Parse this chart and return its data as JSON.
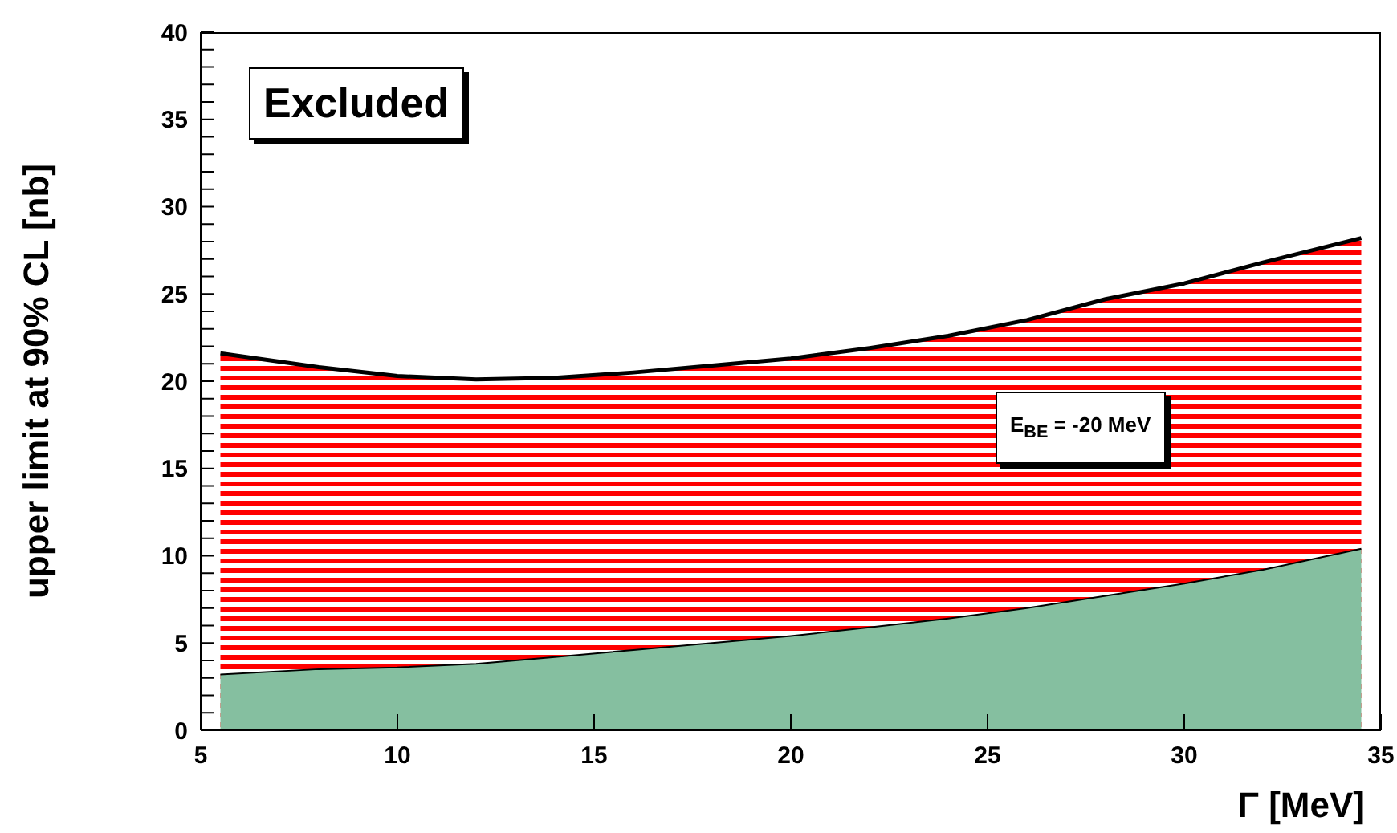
{
  "chart_data": {
    "type": "area",
    "xlabel": "Γ [MeV]",
    "ylabel": "upper limit at 90% CL [nb]",
    "x": [
      5.5,
      8,
      10,
      12,
      14,
      16,
      18,
      20,
      22,
      24,
      26,
      28,
      30,
      32,
      34.5
    ],
    "series": [
      {
        "color": "#ff0000",
        "values": [
          21.6,
          20.8,
          20.3,
          20.1,
          20.2,
          20.5,
          20.9,
          21.3,
          21.9,
          22.6,
          23.5,
          24.7,
          25.6,
          26.8,
          28.2
        ]
      },
      {
        "color": "#85bfa0",
        "values": [
          3.2,
          3.5,
          3.6,
          3.8,
          4.2,
          4.6,
          5.0,
          5.4,
          5.9,
          6.4,
          7.0,
          7.7,
          8.4,
          9.2,
          10.4
        ]
      }
    ],
    "xlim": [
      5,
      35
    ],
    "xticks": [
      5,
      10,
      15,
      20,
      25,
      30,
      35
    ],
    "ylim": [
      0,
      40
    ],
    "yticks": [
      0,
      {
        "value": 1,
        "label": null
      },
      {
        "value": 2,
        "label": null
      },
      {
        "value": 3,
        "label": null
      },
      {
        "value": 4,
        "label": null
      },
      5,
      {
        "value": 6,
        "label": null
      },
      {
        "value": 7,
        "label": null
      },
      {
        "value": 8,
        "label": null
      },
      {
        "value": 9,
        "label": null
      },
      10,
      {
        "value": 11,
        "label": null
      },
      {
        "value": 12,
        "label": null
      },
      {
        "value": 13,
        "label": null
      },
      {
        "value": 14,
        "label": null
      },
      15,
      {
        "value": 16,
        "label": null
      },
      {
        "value": 17,
        "label": null
      },
      {
        "value": 18,
        "label": null
      },
      {
        "value": 19,
        "label": null
      },
      20,
      {
        "value": 21,
        "label": null
      },
      {
        "value": 22,
        "label": null
      },
      {
        "value": 23,
        "label": null
      },
      {
        "value": 24,
        "label": null
      },
      25,
      {
        "value": 26,
        "label": null
      },
      {
        "value": 27,
        "label": null
      },
      {
        "value": 28,
        "label": null
      },
      {
        "value": 29,
        "label": null
      },
      30,
      {
        "value": 31,
        "label": null
      },
      {
        "value": 32,
        "label": null
      },
      {
        "value": 33,
        "label": null
      },
      {
        "value": 34,
        "label": null
      },
      35,
      {
        "value": 36,
        "label": null
      },
      {
        "value": 37,
        "label": null
      },
      {
        "value": 38,
        "label": null
      },
      {
        "value": 39,
        "label": null
      },
      40
    ],
    "annotations": [
      "Excluded",
      "E$_{BE}$ = -20 MeV"
    ]
  }
}
